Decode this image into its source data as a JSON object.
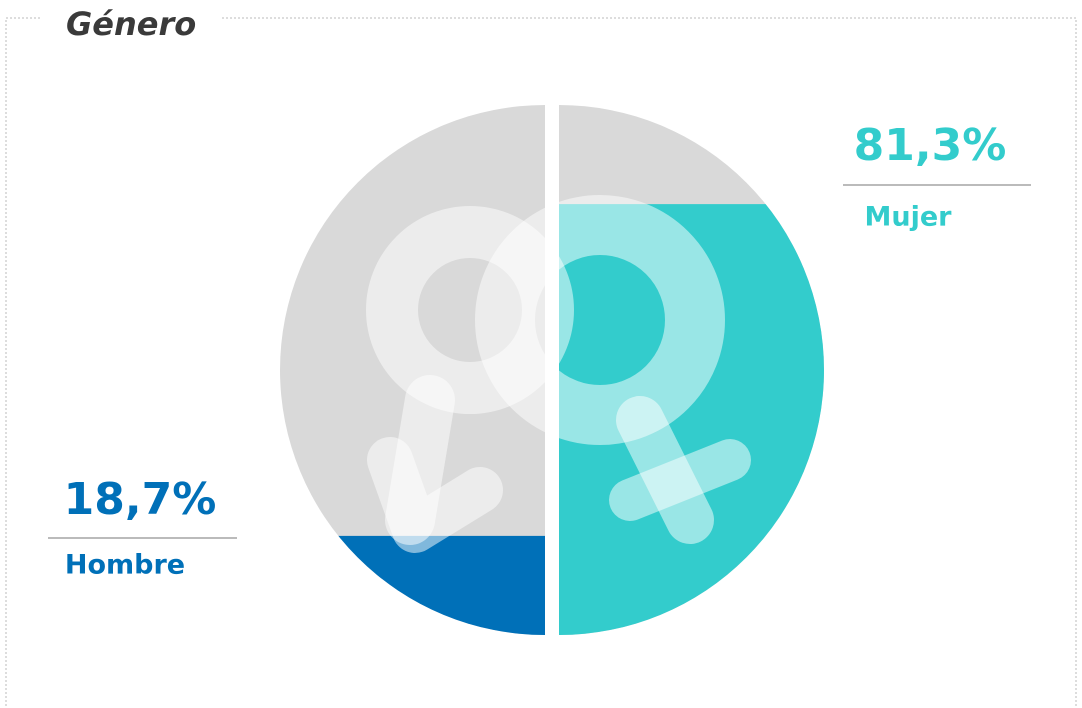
{
  "chart_data": {
    "type": "half-circle-fill",
    "title": "Género",
    "categories": [
      "Hombre",
      "Mujer"
    ],
    "values": [
      18.7,
      81.3
    ],
    "value_labels": [
      "18,7%",
      "81,3%"
    ],
    "colors": [
      "#0070b8",
      "#33cccc"
    ],
    "ylim": [
      0,
      100
    ]
  }
}
